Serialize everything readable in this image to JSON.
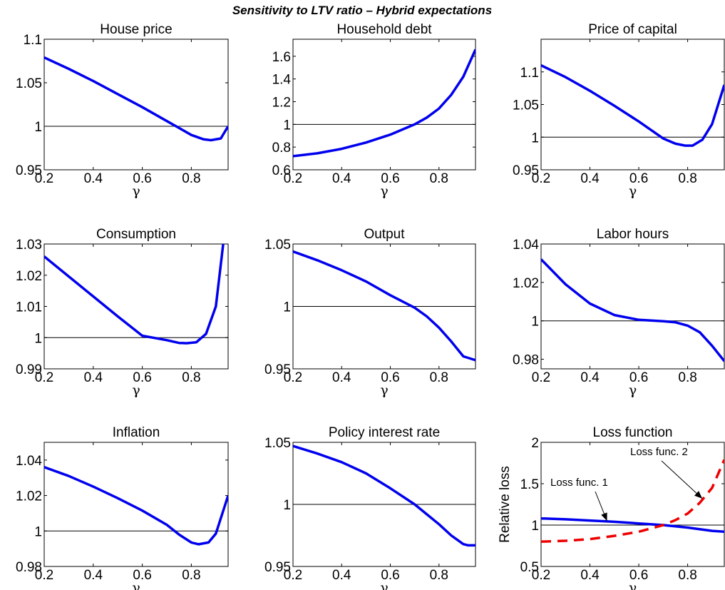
{
  "figure": {
    "title": "Sensitivity to LTV ratio – Hybrid expectations"
  },
  "colors": {
    "series": "#0000ee",
    "series2": "#ee0000",
    "reference": "#000000"
  },
  "chart_data": [
    {
      "type": "line",
      "title": "House price",
      "xlabel": "γ",
      "ylabel": "",
      "xlim": [
        0.2,
        0.95
      ],
      "ylim": [
        0.95,
        1.1
      ],
      "xticks": [
        0.2,
        0.4,
        0.6,
        0.8
      ],
      "yticks": [
        0.95,
        1,
        1.05,
        1.1
      ],
      "xtick_labels": [
        "0.2",
        "0.4",
        "0.6",
        "0.8"
      ],
      "ytick_labels": [
        "0.95",
        "1",
        "1.05",
        "1.1"
      ],
      "reference_line": 1,
      "series": [
        {
          "style": "solid",
          "x": [
            0.2,
            0.3,
            0.4,
            0.5,
            0.6,
            0.7,
            0.75,
            0.8,
            0.85,
            0.88,
            0.92,
            0.95
          ],
          "y": [
            1.079,
            1.066,
            1.052,
            1.037,
            1.022,
            1.006,
            0.998,
            0.99,
            0.985,
            0.984,
            0.986,
            1.0
          ]
        }
      ]
    },
    {
      "type": "line",
      "title": "Household debt",
      "xlabel": "γ",
      "ylabel": "",
      "xlim": [
        0.2,
        0.95
      ],
      "ylim": [
        0.6,
        1.75
      ],
      "xticks": [
        0.2,
        0.4,
        0.6,
        0.8
      ],
      "yticks": [
        0.6,
        0.8,
        1,
        1.2,
        1.4,
        1.6
      ],
      "xtick_labels": [
        "0.2",
        "0.4",
        "0.6",
        "0.8"
      ],
      "ytick_labels": [
        "0.6",
        "0.8",
        "1",
        "1.2",
        "1.4",
        "1.6"
      ],
      "reference_line": 1,
      "series": [
        {
          "style": "solid",
          "x": [
            0.2,
            0.3,
            0.4,
            0.5,
            0.6,
            0.7,
            0.75,
            0.8,
            0.85,
            0.9,
            0.95
          ],
          "y": [
            0.72,
            0.745,
            0.785,
            0.84,
            0.91,
            1.0,
            1.06,
            1.14,
            1.26,
            1.42,
            1.66
          ]
        }
      ]
    },
    {
      "type": "line",
      "title": "Price of capital",
      "xlabel": "γ",
      "ylabel": "",
      "xlim": [
        0.2,
        0.95
      ],
      "ylim": [
        0.95,
        1.15
      ],
      "xticks": [
        0.2,
        0.4,
        0.6,
        0.8
      ],
      "yticks": [
        0.95,
        1,
        1.05,
        1.1
      ],
      "xtick_labels": [
        "0.2",
        "0.4",
        "0.6",
        "0.8"
      ],
      "ytick_labels": [
        "0.95",
        "1",
        "1.05",
        "1.1"
      ],
      "reference_line": 1,
      "series": [
        {
          "style": "solid",
          "x": [
            0.2,
            0.3,
            0.4,
            0.5,
            0.6,
            0.7,
            0.75,
            0.79,
            0.82,
            0.86,
            0.9,
            0.95
          ],
          "y": [
            1.11,
            1.092,
            1.071,
            1.048,
            1.024,
            0.998,
            0.99,
            0.987,
            0.987,
            0.996,
            1.02,
            1.08
          ]
        }
      ]
    },
    {
      "type": "line",
      "title": "Consumption",
      "xlabel": "γ",
      "ylabel": "",
      "xlim": [
        0.2,
        0.95
      ],
      "ylim": [
        0.99,
        1.03
      ],
      "xticks": [
        0.2,
        0.4,
        0.6,
        0.8
      ],
      "yticks": [
        0.99,
        1,
        1.01,
        1.02,
        1.03
      ],
      "xtick_labels": [
        "0.2",
        "0.4",
        "0.6",
        "0.8"
      ],
      "ytick_labels": [
        "0.99",
        "1",
        "1.01",
        "1.02",
        "1.03"
      ],
      "reference_line": 1,
      "series": [
        {
          "style": "solid",
          "x": [
            0.2,
            0.3,
            0.4,
            0.5,
            0.6,
            0.7,
            0.75,
            0.78,
            0.82,
            0.86,
            0.9,
            0.93
          ],
          "y": [
            1.026,
            1.0196,
            1.0132,
            1.0068,
            1.0006,
            0.9992,
            0.9983,
            0.9982,
            0.9985,
            1.0012,
            1.01,
            1.03
          ]
        }
      ]
    },
    {
      "type": "line",
      "title": "Output",
      "xlabel": "γ",
      "ylabel": "",
      "xlim": [
        0.2,
        0.95
      ],
      "ylim": [
        0.95,
        1.05
      ],
      "xticks": [
        0.2,
        0.4,
        0.6,
        0.8
      ],
      "yticks": [
        0.95,
        1,
        1.05
      ],
      "xtick_labels": [
        "0.2",
        "0.4",
        "0.6",
        "0.8"
      ],
      "ytick_labels": [
        "0.95",
        "1",
        "1.05"
      ],
      "reference_line": 1,
      "series": [
        {
          "style": "solid",
          "x": [
            0.2,
            0.3,
            0.4,
            0.5,
            0.6,
            0.7,
            0.75,
            0.8,
            0.85,
            0.9,
            0.95
          ],
          "y": [
            1.044,
            1.037,
            1.029,
            1.02,
            1.009,
            0.999,
            0.992,
            0.983,
            0.972,
            0.96,
            0.957
          ]
        }
      ]
    },
    {
      "type": "line",
      "title": "Labor hours",
      "xlabel": "γ",
      "ylabel": "",
      "xlim": [
        0.2,
        0.95
      ],
      "ylim": [
        0.975,
        1.04
      ],
      "xticks": [
        0.2,
        0.4,
        0.6,
        0.8
      ],
      "yticks": [
        0.98,
        1,
        1.02,
        1.04
      ],
      "xtick_labels": [
        "0.2",
        "0.4",
        "0.6",
        "0.8"
      ],
      "ytick_labels": [
        "0.98",
        "1",
        "1.02",
        "1.04"
      ],
      "reference_line": 1,
      "series": [
        {
          "style": "solid",
          "x": [
            0.2,
            0.3,
            0.4,
            0.5,
            0.6,
            0.7,
            0.75,
            0.8,
            0.85,
            0.9,
            0.95
          ],
          "y": [
            1.032,
            1.019,
            1.009,
            1.003,
            1.0005,
            0.9998,
            0.9992,
            0.9975,
            0.994,
            0.987,
            0.979
          ]
        }
      ]
    },
    {
      "type": "line",
      "title": "Inflation",
      "xlabel": "γ",
      "ylabel": "",
      "xlim": [
        0.2,
        0.95
      ],
      "ylim": [
        0.98,
        1.05
      ],
      "xticks": [
        0.2,
        0.4,
        0.6,
        0.8
      ],
      "yticks": [
        0.98,
        1,
        1.02,
        1.04
      ],
      "xtick_labels": [
        "0.2",
        "0.4",
        "0.6",
        "0.8"
      ],
      "ytick_labels": [
        "0.98",
        "1",
        "1.02",
        "1.04"
      ],
      "reference_line": 1,
      "series": [
        {
          "style": "solid",
          "x": [
            0.2,
            0.3,
            0.4,
            0.5,
            0.6,
            0.7,
            0.75,
            0.8,
            0.83,
            0.87,
            0.9,
            0.95
          ],
          "y": [
            1.036,
            1.031,
            1.025,
            1.0185,
            1.0115,
            1.0035,
            0.998,
            0.9935,
            0.9925,
            0.9935,
            0.9985,
            1.02
          ]
        }
      ]
    },
    {
      "type": "line",
      "title": "Policy interest rate",
      "xlabel": "γ",
      "ylabel": "",
      "xlim": [
        0.2,
        0.95
      ],
      "ylim": [
        0.95,
        1.05
      ],
      "xticks": [
        0.2,
        0.4,
        0.6,
        0.8
      ],
      "yticks": [
        0.95,
        1,
        1.05
      ],
      "xtick_labels": [
        "0.2",
        "0.4",
        "0.6",
        "0.8"
      ],
      "ytick_labels": [
        "0.95",
        "1",
        "1.05"
      ],
      "reference_line": 1,
      "series": [
        {
          "style": "solid",
          "x": [
            0.2,
            0.3,
            0.4,
            0.5,
            0.6,
            0.7,
            0.75,
            0.8,
            0.85,
            0.9,
            0.92,
            0.95
          ],
          "y": [
            1.047,
            1.041,
            1.034,
            1.025,
            1.013,
            1.0,
            0.992,
            0.984,
            0.975,
            0.968,
            0.967,
            0.967
          ]
        }
      ]
    },
    {
      "type": "line",
      "title": "Loss function",
      "xlabel": "γ",
      "ylabel": "Relative loss",
      "xlim": [
        0.2,
        0.95
      ],
      "ylim": [
        0.5,
        2
      ],
      "xticks": [
        0.2,
        0.4,
        0.6,
        0.8
      ],
      "yticks": [
        0.5,
        1,
        1.5,
        2
      ],
      "xtick_labels": [
        "0.2",
        "0.4",
        "0.6",
        "0.8"
      ],
      "ytick_labels": [
        "0.5",
        "1",
        "1.5",
        "2"
      ],
      "reference_line": 1,
      "series": [
        {
          "style": "solid",
          "x": [
            0.2,
            0.3,
            0.4,
            0.5,
            0.6,
            0.7,
            0.8,
            0.9,
            0.95
          ],
          "y": [
            1.08,
            1.07,
            1.055,
            1.04,
            1.02,
            1.0,
            0.97,
            0.93,
            0.92
          ]
        },
        {
          "style": "dashed",
          "x": [
            0.2,
            0.3,
            0.4,
            0.5,
            0.6,
            0.7,
            0.75,
            0.8,
            0.85,
            0.9,
            0.95
          ],
          "y": [
            0.8,
            0.81,
            0.83,
            0.87,
            0.92,
            1.0,
            1.06,
            1.14,
            1.27,
            1.45,
            1.79
          ]
        }
      ],
      "annotations": [
        {
          "text": "Loss func. 1",
          "target_x": 0.47,
          "target_y": 1.05
        },
        {
          "text": "Loss func. 2",
          "target_x": 0.86,
          "target_y": 1.32
        }
      ]
    }
  ]
}
